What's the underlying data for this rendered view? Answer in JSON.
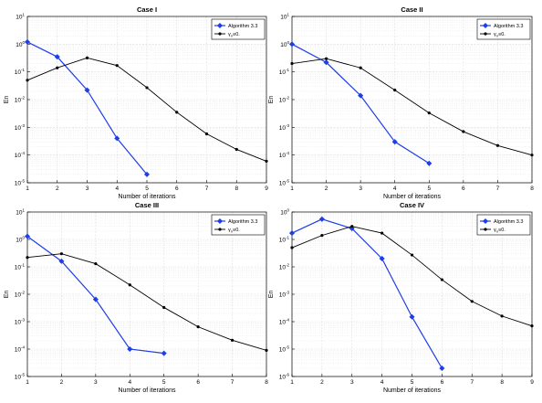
{
  "figure": {
    "colors": {
      "blue": "#1f3ee8",
      "black": "#000000",
      "grid": "#d9d9d9",
      "axis": "#000000"
    }
  },
  "chart_data": [
    {
      "type": "line",
      "title": "Case I",
      "xlabel": "Number of iterations",
      "ylabel": "En",
      "xlim": [
        1,
        9
      ],
      "ylim": [
        1e-05,
        10
      ],
      "yscale": "log",
      "grid": true,
      "legend_position": "top-right",
      "x_ticks": [
        "1",
        "2",
        "3",
        "4",
        "5",
        "6",
        "7",
        "8",
        "9"
      ],
      "y_ticks": [
        {
          "value": 10,
          "mant": "10",
          "exp": "1"
        },
        {
          "value": 1,
          "mant": "10",
          "exp": "0"
        },
        {
          "value": 0.1,
          "mant": "10",
          "exp": "-1"
        },
        {
          "value": 0.01,
          "mant": "10",
          "exp": "-2"
        },
        {
          "value": 0.001,
          "mant": "10",
          "exp": "-3"
        },
        {
          "value": 0.0001,
          "mant": "10",
          "exp": "-4"
        },
        {
          "value": 1e-05,
          "mant": "10",
          "exp": "-5"
        }
      ],
      "legend": [
        {
          "label": "Algorithm 3.3",
          "sub": "",
          "after": "",
          "color": "#1f3ee8",
          "marker": "diamond"
        },
        {
          "label": "γ",
          "sub": "n",
          "after": "≡0.",
          "color": "#000000",
          "marker": "dot"
        }
      ],
      "series": [
        {
          "color": "#1f3ee8",
          "marker": "diamond",
          "x": [
            1,
            2,
            3,
            4,
            5
          ],
          "y": [
            1.2,
            0.35,
            0.022,
            0.0004,
            2e-05
          ]
        },
        {
          "color": "#000000",
          "marker": "dot",
          "x": [
            1,
            2,
            3,
            4,
            5,
            6,
            7,
            8,
            9
          ],
          "y": [
            0.05,
            0.14,
            0.32,
            0.17,
            0.027,
            0.0035,
            0.00058,
            0.00016,
            6e-05
          ]
        }
      ]
    },
    {
      "type": "line",
      "title": "Case II",
      "xlabel": "Number of iterations",
      "ylabel": "En",
      "xlim": [
        1,
        8
      ],
      "ylim": [
        1e-05,
        10
      ],
      "yscale": "log",
      "grid": true,
      "legend_position": "top-right",
      "x_ticks": [
        "1",
        "2",
        "3",
        "4",
        "5",
        "6",
        "7",
        "8"
      ],
      "y_ticks": [
        {
          "value": 10,
          "mant": "10",
          "exp": "1"
        },
        {
          "value": 1,
          "mant": "10",
          "exp": "0"
        },
        {
          "value": 0.1,
          "mant": "10",
          "exp": "-1"
        },
        {
          "value": 0.01,
          "mant": "10",
          "exp": "-2"
        },
        {
          "value": 0.001,
          "mant": "10",
          "exp": "-3"
        },
        {
          "value": 0.0001,
          "mant": "10",
          "exp": "-4"
        },
        {
          "value": 1e-05,
          "mant": "10",
          "exp": "-5"
        }
      ],
      "legend": [
        {
          "label": "Algorithm 3.3",
          "sub": "",
          "after": "",
          "color": "#1f3ee8",
          "marker": "diamond"
        },
        {
          "label": "γ",
          "sub": "n",
          "after": "≡0.",
          "color": "#000000",
          "marker": "dot"
        }
      ],
      "series": [
        {
          "color": "#1f3ee8",
          "marker": "diamond",
          "x": [
            1,
            2,
            3,
            4,
            5
          ],
          "y": [
            1.0,
            0.22,
            0.014,
            0.0003,
            5e-05
          ]
        },
        {
          "color": "#000000",
          "marker": "dot",
          "x": [
            1,
            2,
            3,
            4,
            5,
            6,
            7,
            8
          ],
          "y": [
            0.2,
            0.3,
            0.14,
            0.022,
            0.0033,
            0.0007,
            0.00022,
            0.0001
          ]
        }
      ]
    },
    {
      "type": "line",
      "title": "Case III",
      "xlabel": "Number of iterations",
      "ylabel": "En",
      "xlim": [
        1,
        8
      ],
      "ylim": [
        1e-05,
        10
      ],
      "yscale": "log",
      "grid": true,
      "legend_position": "top-right",
      "x_ticks": [
        "1",
        "2",
        "3",
        "4",
        "5",
        "6",
        "7",
        "8"
      ],
      "y_ticks": [
        {
          "value": 10,
          "mant": "10",
          "exp": "1"
        },
        {
          "value": 1,
          "mant": "10",
          "exp": "0"
        },
        {
          "value": 0.1,
          "mant": "10",
          "exp": "-1"
        },
        {
          "value": 0.01,
          "mant": "10",
          "exp": "-2"
        },
        {
          "value": 0.001,
          "mant": "10",
          "exp": "-3"
        },
        {
          "value": 0.0001,
          "mant": "10",
          "exp": "-4"
        },
        {
          "value": 1e-05,
          "mant": "10",
          "exp": "-5"
        }
      ],
      "legend": [
        {
          "label": "Algorithm 3.3",
          "sub": "",
          "after": "",
          "color": "#1f3ee8",
          "marker": "diamond"
        },
        {
          "label": "γ",
          "sub": "n",
          "after": "≡0.",
          "color": "#000000",
          "marker": "dot"
        }
      ],
      "series": [
        {
          "color": "#1f3ee8",
          "marker": "diamond",
          "x": [
            1,
            2,
            3,
            4,
            5
          ],
          "y": [
            1.3,
            0.16,
            0.0065,
            0.0001,
            7e-05
          ]
        },
        {
          "color": "#000000",
          "marker": "dot",
          "x": [
            1,
            2,
            3,
            4,
            5,
            6,
            7,
            8
          ],
          "y": [
            0.22,
            0.3,
            0.13,
            0.022,
            0.0033,
            0.00065,
            0.00021,
            9e-05
          ]
        }
      ]
    },
    {
      "type": "line",
      "title": "Case IV",
      "xlabel": "Number of iterations",
      "ylabel": "En",
      "xlim": [
        1,
        9
      ],
      "ylim": [
        1e-06,
        1
      ],
      "yscale": "log",
      "grid": true,
      "legend_position": "top-right",
      "x_ticks": [
        "1",
        "2",
        "3",
        "4",
        "5",
        "6",
        "7",
        "8",
        "9"
      ],
      "y_ticks": [
        {
          "value": 1,
          "mant": "10",
          "exp": "0"
        },
        {
          "value": 0.1,
          "mant": "10",
          "exp": "-1"
        },
        {
          "value": 0.01,
          "mant": "10",
          "exp": "-2"
        },
        {
          "value": 0.001,
          "mant": "10",
          "exp": "-3"
        },
        {
          "value": 0.0001,
          "mant": "10",
          "exp": "-4"
        },
        {
          "value": 1e-05,
          "mant": "10",
          "exp": "-5"
        },
        {
          "value": 1e-06,
          "mant": "10",
          "exp": "-6"
        }
      ],
      "legend": [
        {
          "label": "Algorithm 3.3",
          "sub": "",
          "after": "",
          "color": "#1f3ee8",
          "marker": "diamond"
        },
        {
          "label": "γ",
          "sub": "n",
          "after": "≡0.",
          "color": "#000000",
          "marker": "dot"
        }
      ],
      "series": [
        {
          "color": "#1f3ee8",
          "marker": "diamond",
          "x": [
            1,
            2,
            3,
            4,
            5,
            6
          ],
          "y": [
            0.17,
            0.55,
            0.25,
            0.02,
            0.00015,
            2e-06
          ]
        },
        {
          "color": "#000000",
          "marker": "dot",
          "x": [
            1,
            2,
            3,
            4,
            5,
            6,
            7,
            8,
            9
          ],
          "y": [
            0.05,
            0.14,
            0.3,
            0.17,
            0.027,
            0.0034,
            0.00055,
            0.00016,
            7e-05
          ]
        }
      ]
    }
  ]
}
